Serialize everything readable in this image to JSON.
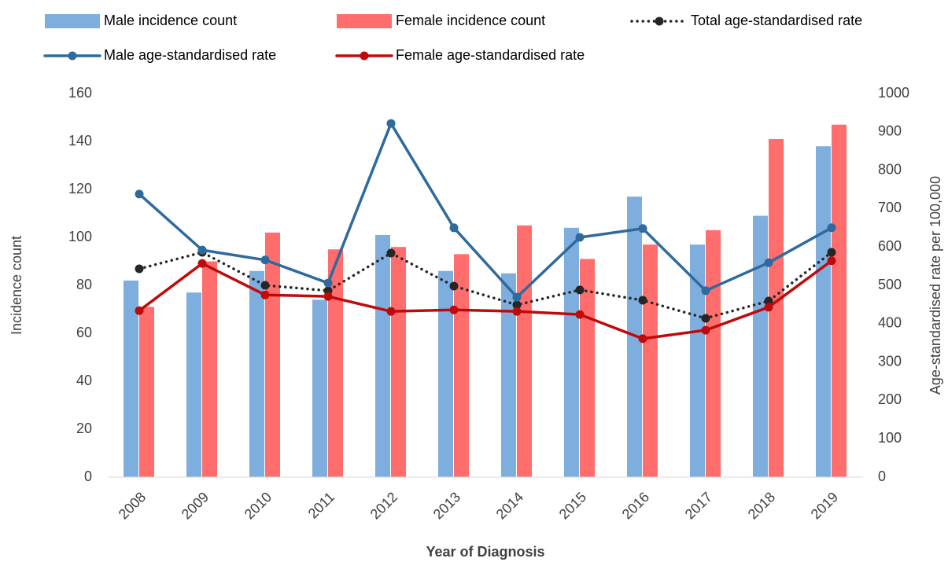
{
  "chart_data": {
    "type": "bar",
    "x_label": "Year of Diagnosis",
    "y_label": "Incidence count",
    "y2_label": "Age-standardised rate per 100,000",
    "categories": [
      "2008",
      "2009",
      "2010",
      "2011",
      "2012",
      "2013",
      "2014",
      "2015",
      "2016",
      "2017",
      "2018",
      "2019"
    ],
    "series": [
      {
        "name": "Male incidence count",
        "type": "bar",
        "color": "#7eaedd",
        "values": [
          82,
          77,
          86,
          74,
          101,
          86,
          85,
          104,
          117,
          97,
          109,
          138
        ]
      },
      {
        "name": "Female incidence count",
        "type": "bar",
        "color": "#ff6d6d",
        "values": [
          71,
          90,
          102,
          95,
          96,
          93,
          105,
          91,
          97,
          103,
          141,
          147
        ]
      },
      {
        "name": "Total age-standardised rate",
        "type": "line",
        "axis": "y2",
        "dashed": true,
        "color": "#262626",
        "values": [
          543,
          586,
          500,
          486,
          584,
          498,
          449,
          488,
          461,
          414,
          459,
          586
        ]
      },
      {
        "name": "Male age-standardised rate",
        "type": "line",
        "axis": "y2",
        "color": "#2e6a9e",
        "values": [
          738,
          592,
          566,
          506,
          922,
          650,
          469,
          625,
          648,
          486,
          559,
          650
        ]
      },
      {
        "name": "Female age-standardised rate",
        "type": "line",
        "axis": "y2",
        "color": "#c00a0a",
        "values": [
          434,
          557,
          475,
          471,
          432,
          436,
          432,
          424,
          361,
          383,
          443,
          564
        ]
      }
    ],
    "ylim": [
      0,
      160
    ],
    "yticks": [
      0,
      20,
      40,
      60,
      80,
      100,
      120,
      140,
      160
    ],
    "y2lim": [
      0,
      1000
    ],
    "y2ticks": [
      0,
      100,
      200,
      300,
      400,
      500,
      600,
      700,
      800,
      900,
      1000
    ],
    "grid": false
  }
}
